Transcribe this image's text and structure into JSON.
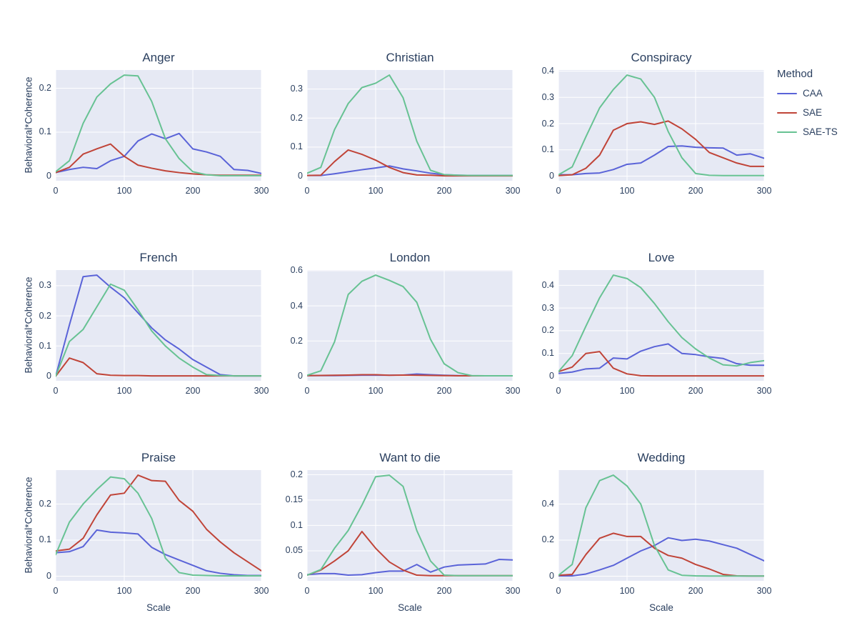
{
  "figure": {
    "y_axis_title": "Behavioral*Coherence",
    "x_axis_title": "Scale",
    "background": "#ffffff",
    "plot_background": "#e6e9f4",
    "grid_color": "#ffffff",
    "font_color": "#2a3f5f"
  },
  "legend": {
    "title": "Method",
    "entries": [
      {
        "label": "CAA",
        "color": "#5a63d8"
      },
      {
        "label": "SAE",
        "color": "#c04438"
      },
      {
        "label": "SAE-TS",
        "color": "#67c293"
      }
    ]
  },
  "chart_data": [
    {
      "type": "line",
      "title": "Anger",
      "x": [
        0,
        20,
        40,
        60,
        80,
        100,
        120,
        140,
        160,
        180,
        200,
        220,
        240,
        260,
        280,
        300
      ],
      "xticks": [
        0,
        100,
        200,
        300
      ],
      "yticks": [
        0,
        0.1,
        0.2
      ],
      "xlim": [
        0,
        300
      ],
      "ylim": [
        -0.0106,
        0.2415
      ],
      "xlabel": "Scale",
      "ylabel": "Behavioral*Coherence",
      "series": [
        {
          "name": "CAA",
          "values": [
            0.008,
            0.015,
            0.02,
            0.017,
            0.035,
            0.045,
            0.08,
            0.096,
            0.085,
            0.097,
            0.062,
            0.055,
            0.045,
            0.015,
            0.013,
            0.006
          ]
        },
        {
          "name": "SAE",
          "values": [
            0.008,
            0.02,
            0.05,
            0.062,
            0.073,
            0.045,
            0.025,
            0.018,
            0.012,
            0.008,
            0.005,
            0.003,
            0.002,
            0.002,
            0.002,
            0.002
          ]
        },
        {
          "name": "SAE-TS",
          "values": [
            0.01,
            0.035,
            0.12,
            0.18,
            0.21,
            0.23,
            0.228,
            0.17,
            0.085,
            0.04,
            0.01,
            0.003,
            0.001,
            0.001,
            0.001,
            0.001
          ]
        }
      ]
    },
    {
      "type": "line",
      "title": "Christian",
      "x": [
        0,
        20,
        40,
        60,
        80,
        100,
        120,
        140,
        160,
        180,
        200,
        220,
        240,
        260,
        280,
        300
      ],
      "xticks": [
        0,
        100,
        200,
        300
      ],
      "yticks": [
        0,
        0.1,
        0.2,
        0.3
      ],
      "xlim": [
        0,
        300
      ],
      "ylim": [
        -0.016,
        0.3654
      ],
      "xlabel": "Scale",
      "ylabel": "Behavioral*Coherence",
      "series": [
        {
          "name": "CAA",
          "values": [
            0.002,
            0.002,
            0.008,
            0.015,
            0.022,
            0.028,
            0.035,
            0.025,
            0.018,
            0.01,
            0.005,
            0.003,
            0.002,
            0.002,
            0.002,
            0.002
          ]
        },
        {
          "name": "SAE",
          "values": [
            0.002,
            0.003,
            0.05,
            0.09,
            0.075,
            0.055,
            0.03,
            0.012,
            0.004,
            0.003,
            0.001,
            0.001,
            0.001,
            0.001,
            0.001,
            0.001
          ]
        },
        {
          "name": "SAE-TS",
          "values": [
            0.01,
            0.03,
            0.16,
            0.25,
            0.305,
            0.32,
            0.348,
            0.27,
            0.12,
            0.02,
            0.005,
            0.003,
            0.002,
            0.002,
            0.002,
            0.002
          ]
        }
      ]
    },
    {
      "type": "line",
      "title": "Conspiracy",
      "x": [
        0,
        20,
        40,
        60,
        80,
        100,
        120,
        140,
        160,
        180,
        200,
        220,
        240,
        260,
        280,
        300
      ],
      "xticks": [
        0,
        100,
        200,
        300
      ],
      "yticks": [
        0,
        0.1,
        0.2,
        0.3,
        0.4
      ],
      "xlim": [
        0,
        300
      ],
      "ylim": [
        -0.0177,
        0.4043
      ],
      "xlabel": "Scale",
      "ylabel": "Behavioral*Coherence",
      "series": [
        {
          "name": "CAA",
          "values": [
            0.005,
            0.005,
            0.01,
            0.012,
            0.025,
            0.045,
            0.05,
            0.08,
            0.113,
            0.115,
            0.11,
            0.108,
            0.107,
            0.08,
            0.085,
            0.068
          ]
        },
        {
          "name": "SAE",
          "values": [
            0.002,
            0.005,
            0.03,
            0.08,
            0.175,
            0.2,
            0.207,
            0.197,
            0.21,
            0.18,
            0.14,
            0.09,
            0.07,
            0.05,
            0.037,
            0.037
          ]
        },
        {
          "name": "SAE-TS",
          "values": [
            0.005,
            0.035,
            0.15,
            0.26,
            0.33,
            0.385,
            0.37,
            0.3,
            0.17,
            0.07,
            0.01,
            0.003,
            0.002,
            0.002,
            0.002,
            0.002
          ]
        }
      ]
    },
    {
      "type": "line",
      "title": "French",
      "x": [
        0,
        20,
        40,
        60,
        80,
        100,
        120,
        140,
        160,
        180,
        200,
        220,
        240,
        260,
        280,
        300
      ],
      "xticks": [
        0,
        100,
        200,
        300
      ],
      "yticks": [
        0,
        0.1,
        0.2,
        0.3
      ],
      "xlim": [
        0,
        300
      ],
      "ylim": [
        -0.0154,
        0.3518
      ],
      "xlabel": "Scale",
      "ylabel": "Behavioral*Coherence",
      "series": [
        {
          "name": "CAA",
          "values": [
            0.0,
            0.17,
            0.33,
            0.335,
            0.295,
            0.26,
            0.21,
            0.16,
            0.12,
            0.09,
            0.055,
            0.03,
            0.005,
            0.001,
            0.001,
            0.001
          ]
        },
        {
          "name": "SAE",
          "values": [
            0.0,
            0.06,
            0.045,
            0.008,
            0.003,
            0.002,
            0.002,
            0.001,
            0.001,
            0.001,
            0.001,
            0.001,
            0.001,
            0.001,
            0.001,
            0.001
          ]
        },
        {
          "name": "SAE-TS",
          "values": [
            0.0,
            0.115,
            0.155,
            0.23,
            0.305,
            0.285,
            0.22,
            0.15,
            0.1,
            0.06,
            0.03,
            0.005,
            0.002,
            0.001,
            0.001,
            0.001
          ]
        }
      ]
    },
    {
      "type": "line",
      "title": "London",
      "x": [
        0,
        20,
        40,
        60,
        80,
        100,
        120,
        140,
        160,
        180,
        200,
        220,
        240,
        260,
        280,
        300
      ],
      "xticks": [
        0,
        100,
        200,
        300
      ],
      "yticks": [
        0,
        0.2,
        0.4,
        0.6
      ],
      "xlim": [
        0,
        300
      ],
      "ylim": [
        -0.0265,
        0.6038
      ],
      "xlabel": "Scale",
      "ylabel": "Behavioral*Coherence",
      "series": [
        {
          "name": "CAA",
          "values": [
            0.003,
            0.003,
            0.003,
            0.004,
            0.005,
            0.005,
            0.005,
            0.006,
            0.012,
            0.008,
            0.005,
            0.003,
            0.002,
            0.002,
            0.002,
            0.002
          ]
        },
        {
          "name": "SAE",
          "values": [
            0.003,
            0.004,
            0.005,
            0.006,
            0.008,
            0.008,
            0.005,
            0.006,
            0.005,
            0.004,
            0.003,
            0.002,
            0.002,
            0.002,
            0.002,
            0.002
          ]
        },
        {
          "name": "SAE-TS",
          "values": [
            0.005,
            0.03,
            0.195,
            0.465,
            0.54,
            0.575,
            0.545,
            0.51,
            0.42,
            0.21,
            0.07,
            0.02,
            0.003,
            0.002,
            0.002,
            0.002
          ]
        }
      ]
    },
    {
      "type": "line",
      "title": "Love",
      "x": [
        0,
        20,
        40,
        60,
        80,
        100,
        120,
        140,
        160,
        180,
        200,
        220,
        240,
        260,
        280,
        300
      ],
      "xticks": [
        0,
        100,
        200,
        300
      ],
      "yticks": [
        0,
        0.1,
        0.2,
        0.3,
        0.4
      ],
      "xlim": [
        0,
        300
      ],
      "ylim": [
        -0.0205,
        0.4673
      ],
      "xlabel": "Scale",
      "ylabel": "Behavioral*Coherence",
      "series": [
        {
          "name": "CAA",
          "values": [
            0.012,
            0.018,
            0.032,
            0.035,
            0.08,
            0.076,
            0.11,
            0.13,
            0.142,
            0.1,
            0.095,
            0.085,
            0.078,
            0.055,
            0.048,
            0.048
          ]
        },
        {
          "name": "SAE",
          "values": [
            0.02,
            0.04,
            0.1,
            0.108,
            0.035,
            0.01,
            0.002,
            0.001,
            0.001,
            0.001,
            0.001,
            0.001,
            0.001,
            0.001,
            0.001,
            0.001
          ]
        },
        {
          "name": "SAE-TS",
          "values": [
            0.02,
            0.09,
            0.22,
            0.345,
            0.445,
            0.43,
            0.39,
            0.32,
            0.24,
            0.17,
            0.12,
            0.08,
            0.05,
            0.045,
            0.06,
            0.068
          ]
        }
      ]
    },
    {
      "type": "line",
      "title": "Praise",
      "x": [
        0,
        20,
        40,
        60,
        80,
        100,
        120,
        140,
        160,
        180,
        200,
        220,
        240,
        260,
        280,
        300
      ],
      "xticks": [
        0,
        100,
        200,
        300
      ],
      "yticks": [
        0,
        0.1,
        0.2
      ],
      "xlim": [
        0,
        300
      ],
      "ylim": [
        -0.0129,
        0.294
      ],
      "xlabel": "Scale",
      "ylabel": "Behavioral*Coherence",
      "series": [
        {
          "name": "CAA",
          "values": [
            0.065,
            0.068,
            0.082,
            0.128,
            0.122,
            0.12,
            0.117,
            0.08,
            0.06,
            0.045,
            0.03,
            0.015,
            0.008,
            0.004,
            0.002,
            0.002
          ]
        },
        {
          "name": "SAE",
          "values": [
            0.07,
            0.075,
            0.105,
            0.17,
            0.225,
            0.23,
            0.28,
            0.265,
            0.263,
            0.21,
            0.18,
            0.13,
            0.095,
            0.065,
            0.04,
            0.015
          ]
        },
        {
          "name": "SAE-TS",
          "values": [
            0.06,
            0.15,
            0.2,
            0.24,
            0.275,
            0.27,
            0.23,
            0.16,
            0.05,
            0.01,
            0.003,
            0.002,
            0.001,
            0.001,
            0.001,
            0.001
          ]
        }
      ]
    },
    {
      "type": "line",
      "title": "Want to die",
      "x": [
        0,
        20,
        40,
        60,
        80,
        100,
        120,
        140,
        160,
        180,
        200,
        220,
        240,
        260,
        280,
        300
      ],
      "xticks": [
        0,
        100,
        200,
        300
      ],
      "yticks": [
        0,
        0.05,
        0.1,
        0.15,
        0.2
      ],
      "xlim": [
        0,
        300
      ],
      "ylim": [
        -0.0092,
        0.209
      ],
      "xlabel": "Scale",
      "ylabel": "Behavioral*Coherence",
      "series": [
        {
          "name": "CAA",
          "values": [
            0.003,
            0.005,
            0.005,
            0.002,
            0.003,
            0.007,
            0.01,
            0.01,
            0.023,
            0.008,
            0.018,
            0.022,
            0.023,
            0.024,
            0.033,
            0.032
          ]
        },
        {
          "name": "SAE",
          "values": [
            0.002,
            0.012,
            0.03,
            0.05,
            0.088,
            0.055,
            0.028,
            0.012,
            0.002,
            0.001,
            0.001,
            0.001,
            0.001,
            0.001,
            0.001,
            0.001
          ]
        },
        {
          "name": "SAE-TS",
          "values": [
            0.002,
            0.013,
            0.055,
            0.09,
            0.14,
            0.196,
            0.199,
            0.177,
            0.09,
            0.03,
            0.002,
            0.001,
            0.001,
            0.001,
            0.001,
            0.001
          ]
        }
      ]
    },
    {
      "type": "line",
      "title": "Wedding",
      "x": [
        0,
        20,
        40,
        60,
        80,
        100,
        120,
        140,
        160,
        180,
        200,
        220,
        240,
        260,
        280,
        300
      ],
      "xticks": [
        0,
        100,
        200,
        300
      ],
      "yticks": [
        0,
        0.2,
        0.4
      ],
      "xlim": [
        0,
        300
      ],
      "ylim": [
        -0.0258,
        0.588
      ],
      "xlabel": "Scale",
      "ylabel": "Behavioral*Coherence",
      "series": [
        {
          "name": "CAA",
          "values": [
            0.002,
            0.002,
            0.012,
            0.035,
            0.06,
            0.1,
            0.14,
            0.17,
            0.213,
            0.198,
            0.205,
            0.195,
            0.175,
            0.155,
            0.12,
            0.085
          ]
        },
        {
          "name": "SAE",
          "values": [
            0.005,
            0.01,
            0.12,
            0.21,
            0.238,
            0.22,
            0.22,
            0.155,
            0.115,
            0.1,
            0.065,
            0.04,
            0.01,
            0.002,
            0.001,
            0.001
          ]
        },
        {
          "name": "SAE-TS",
          "values": [
            0.005,
            0.065,
            0.38,
            0.53,
            0.56,
            0.5,
            0.4,
            0.17,
            0.035,
            0.005,
            0.002,
            0.001,
            0.001,
            0.001,
            0.001,
            0.001
          ]
        }
      ]
    }
  ]
}
